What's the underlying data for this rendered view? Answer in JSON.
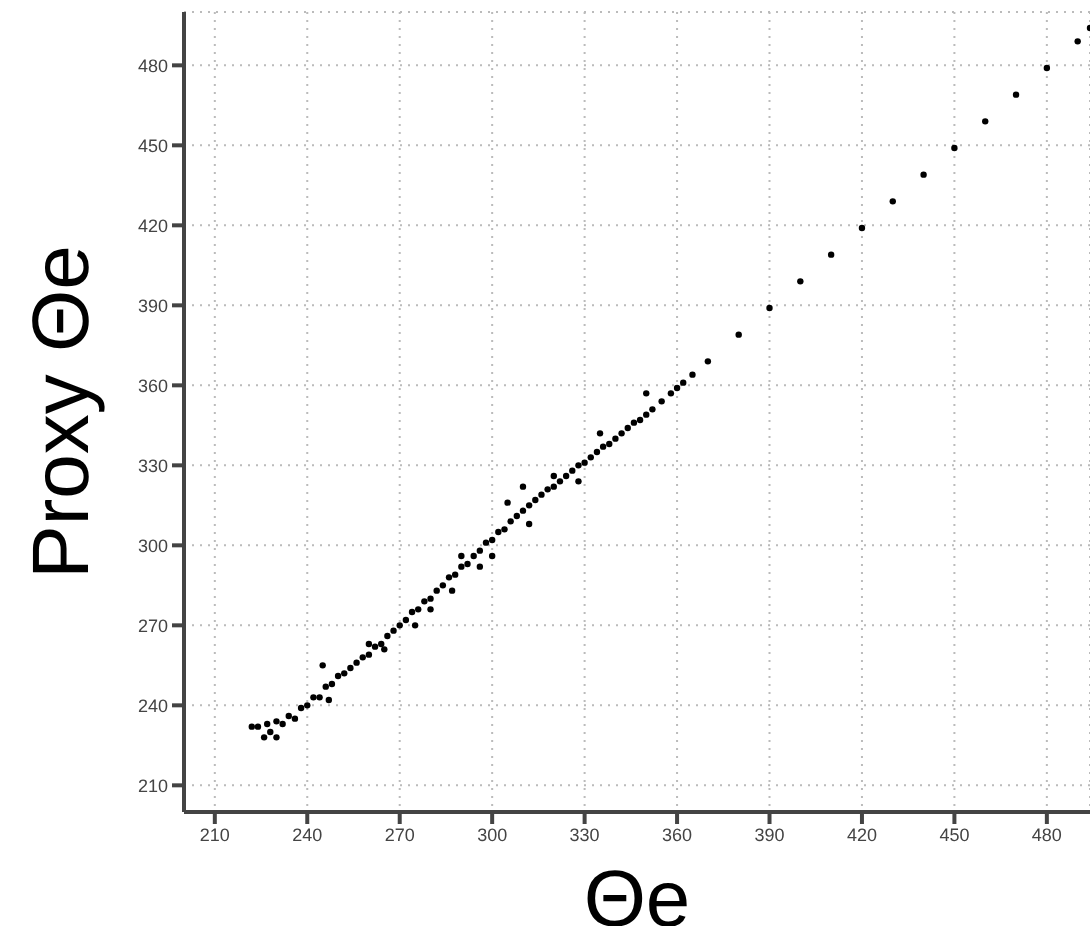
{
  "chart_data": {
    "type": "scatter",
    "xlabel": "Θe",
    "ylabel": "Proxy Θe",
    "x": [
      222,
      224,
      226,
      227,
      228,
      230,
      232,
      234,
      236,
      238,
      240,
      242,
      244,
      246,
      248,
      250,
      252,
      254,
      256,
      258,
      260,
      262,
      264,
      266,
      268,
      270,
      272,
      274,
      276,
      278,
      280,
      282,
      284,
      286,
      288,
      290,
      292,
      294,
      296,
      298,
      300,
      302,
      304,
      306,
      308,
      310,
      312,
      314,
      316,
      318,
      320,
      322,
      324,
      326,
      328,
      330,
      332,
      334,
      336,
      338,
      340,
      342,
      344,
      346,
      348,
      350,
      352,
      355,
      358,
      360,
      362,
      365,
      370,
      380,
      390,
      400,
      410,
      420,
      430,
      440,
      450,
      460,
      470,
      480,
      490,
      494,
      230,
      245,
      260,
      275,
      290,
      305,
      320,
      335,
      350,
      287,
      300,
      310,
      247,
      265,
      280,
      296,
      312,
      328
    ],
    "values": [
      232,
      232,
      228,
      233,
      230,
      234,
      233,
      236,
      235,
      239,
      240,
      243,
      243,
      247,
      248,
      251,
      252,
      254,
      256,
      258,
      259,
      262,
      263,
      266,
      268,
      270,
      272,
      275,
      276,
      279,
      280,
      283,
      285,
      288,
      289,
      292,
      293,
      296,
      298,
      301,
      302,
      305,
      306,
      309,
      311,
      313,
      315,
      317,
      319,
      321,
      322,
      324,
      326,
      328,
      330,
      331,
      333,
      335,
      337,
      338,
      340,
      342,
      344,
      346,
      347,
      349,
      351,
      354,
      357,
      359,
      361,
      364,
      369,
      379,
      389,
      399,
      409,
      419,
      429,
      439,
      449,
      459,
      469,
      479,
      489,
      494,
      228,
      255,
      263,
      270,
      296,
      316,
      326,
      342,
      357,
      283,
      296,
      322,
      242,
      261,
      276,
      292,
      308,
      324
    ],
    "color": "#000000",
    "marker": "circle",
    "xlim": [
      200,
      494
    ],
    "ylim": [
      200,
      500
    ],
    "xticks": [
      210,
      240,
      270,
      300,
      330,
      360,
      390,
      420,
      450,
      480
    ],
    "yticks": [
      210,
      240,
      270,
      300,
      330,
      360,
      390,
      420,
      450,
      480
    ],
    "grid": true
  }
}
